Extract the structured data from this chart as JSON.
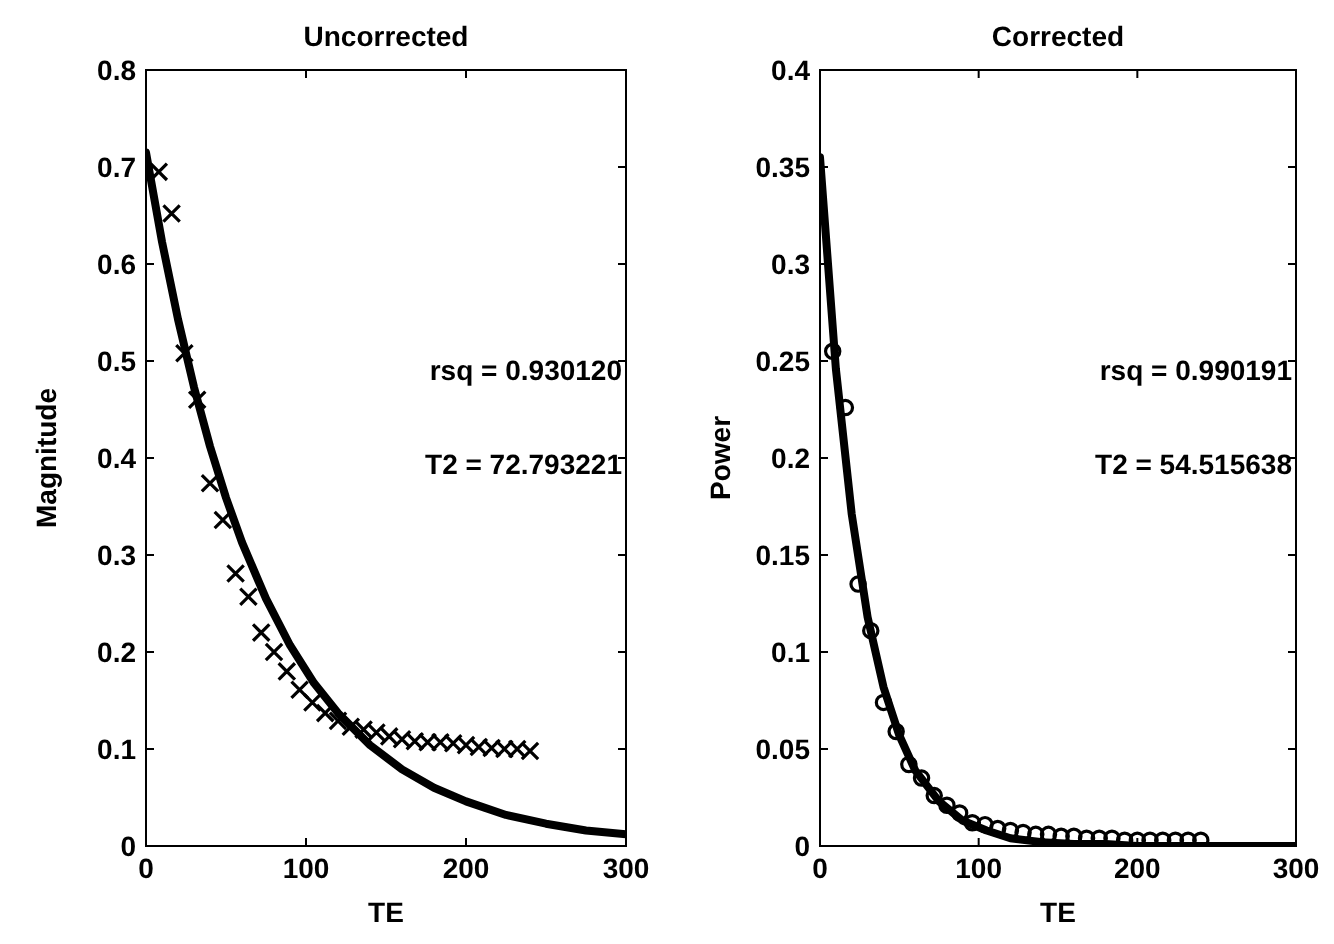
{
  "chart_data": [
    {
      "type": "scatter",
      "title": "Uncorrected",
      "xlabel": "TE",
      "ylabel": "Magnitude",
      "xlim": [
        0,
        300
      ],
      "ylim": [
        0,
        0.8
      ],
      "xticks": [
        0,
        100,
        200,
        300
      ],
      "yticks": [
        0,
        0.1,
        0.2,
        0.3,
        0.4,
        0.5,
        0.6,
        0.7,
        0.8
      ],
      "grid": false,
      "annotations": [
        "rsq = 0.930120",
        "T2 = 72.793221"
      ],
      "series": [
        {
          "marker": "cross",
          "color": "#000000",
          "x": [
            8,
            16,
            24,
            32,
            40,
            48,
            56,
            64,
            72,
            80,
            88,
            96,
            104,
            112,
            120,
            128,
            136,
            144,
            152,
            160,
            168,
            176,
            184,
            192,
            200,
            208,
            216,
            224,
            232,
            240
          ],
          "values": [
            0.695,
            0.652,
            0.508,
            0.46,
            0.374,
            0.336,
            0.281,
            0.257,
            0.22,
            0.2,
            0.18,
            0.161,
            0.148,
            0.137,
            0.129,
            0.123,
            0.12,
            0.117,
            0.113,
            0.11,
            0.108,
            0.107,
            0.107,
            0.106,
            0.104,
            0.102,
            0.101,
            0.1,
            0.1,
            0.098
          ]
        },
        {
          "type": "line",
          "marker": "none",
          "line_style": "solid",
          "color": "#000000",
          "x": [
            0,
            10,
            20,
            30,
            40,
            50,
            60,
            75,
            90,
            105,
            120,
            140,
            160,
            180,
            200,
            225,
            250,
            275,
            300
          ],
          "values": [
            0.715,
            0.623,
            0.543,
            0.473,
            0.412,
            0.359,
            0.313,
            0.255,
            0.207,
            0.168,
            0.137,
            0.104,
            0.079,
            0.06,
            0.046,
            0.032,
            0.023,
            0.016,
            0.012
          ]
        }
      ]
    },
    {
      "type": "scatter",
      "title": "Corrected",
      "xlabel": "TE",
      "ylabel": "Power",
      "xlim": [
        0,
        300
      ],
      "ylim": [
        0,
        0.4
      ],
      "xticks": [
        0,
        100,
        200,
        300
      ],
      "yticks": [
        0,
        0.05,
        0.1,
        0.15,
        0.2,
        0.25,
        0.3,
        0.35,
        0.4
      ],
      "grid": false,
      "annotations": [
        "rsq = 0.990191",
        "T2 = 54.515638"
      ],
      "series": [
        {
          "marker": "circle",
          "color": "#000000",
          "x": [
            8,
            16,
            24,
            32,
            40,
            48,
            56,
            64,
            72,
            80,
            88,
            96,
            104,
            112,
            120,
            128,
            136,
            144,
            152,
            160,
            168,
            176,
            184,
            192,
            200,
            208,
            216,
            224,
            232,
            240
          ],
          "values": [
            0.255,
            0.226,
            0.135,
            0.111,
            0.074,
            0.059,
            0.042,
            0.035,
            0.026,
            0.021,
            0.017,
            0.012,
            0.011,
            0.009,
            0.008,
            0.007,
            0.006,
            0.006,
            0.005,
            0.005,
            0.004,
            0.004,
            0.004,
            0.003,
            0.003,
            0.003,
            0.003,
            0.003,
            0.003,
            0.003
          ]
        },
        {
          "type": "line",
          "marker": "none",
          "line_style": "solid",
          "color": "#000000",
          "x": [
            0,
            10,
            20,
            30,
            40,
            50,
            60,
            75,
            90,
            105,
            120,
            140,
            160,
            180,
            200,
            250,
            300
          ],
          "values": [
            0.355,
            0.246,
            0.171,
            0.118,
            0.082,
            0.057,
            0.039,
            0.023,
            0.013,
            0.008,
            0.004,
            0.002,
            0.001,
            0.001,
            0,
            0,
            0
          ]
        }
      ]
    }
  ]
}
